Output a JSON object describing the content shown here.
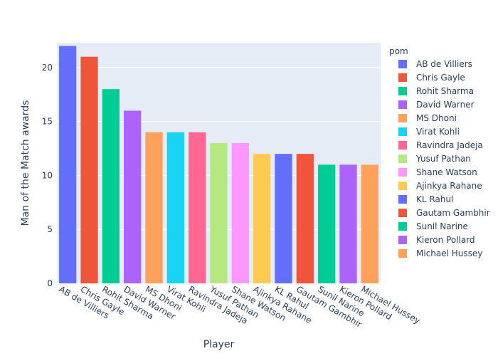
{
  "chart_data": {
    "type": "bar",
    "categories": [
      "AB de Villiers",
      "Chris Gayle",
      "Rohit Sharma",
      "David Warner",
      "MS Dhoni",
      "Virat Kohli",
      "Ravindra Jadeja",
      "Yusuf Pathan",
      "Shane Watson",
      "Ajinkya Rahane",
      "KL Rahul",
      "Gautam Gambhir",
      "Sunil Narine",
      "Kieron Pollard",
      "Michael Hussey"
    ],
    "values": [
      22,
      21,
      18,
      16,
      14,
      14,
      14,
      13,
      13,
      12,
      12,
      12,
      11,
      11,
      11
    ],
    "colors": [
      "#636efa",
      "#EF553B",
      "#00cc96",
      "#ab63fa",
      "#FFA15A",
      "#19d3f3",
      "#FF6692",
      "#B6E880",
      "#FF97FF",
      "#FECB52",
      "#636efa",
      "#EF553B",
      "#00cc96",
      "#ab63fa",
      "#FFA15A"
    ],
    "xlabel": "Player",
    "ylabel": "Man of the Match awards",
    "ylim": [
      0,
      22.3
    ],
    "yticks": [
      0,
      5,
      10,
      15,
      20
    ],
    "legend_title": "pom",
    "legend_position": "right",
    "grid": true,
    "plot_bg": "#e5ecf6"
  }
}
